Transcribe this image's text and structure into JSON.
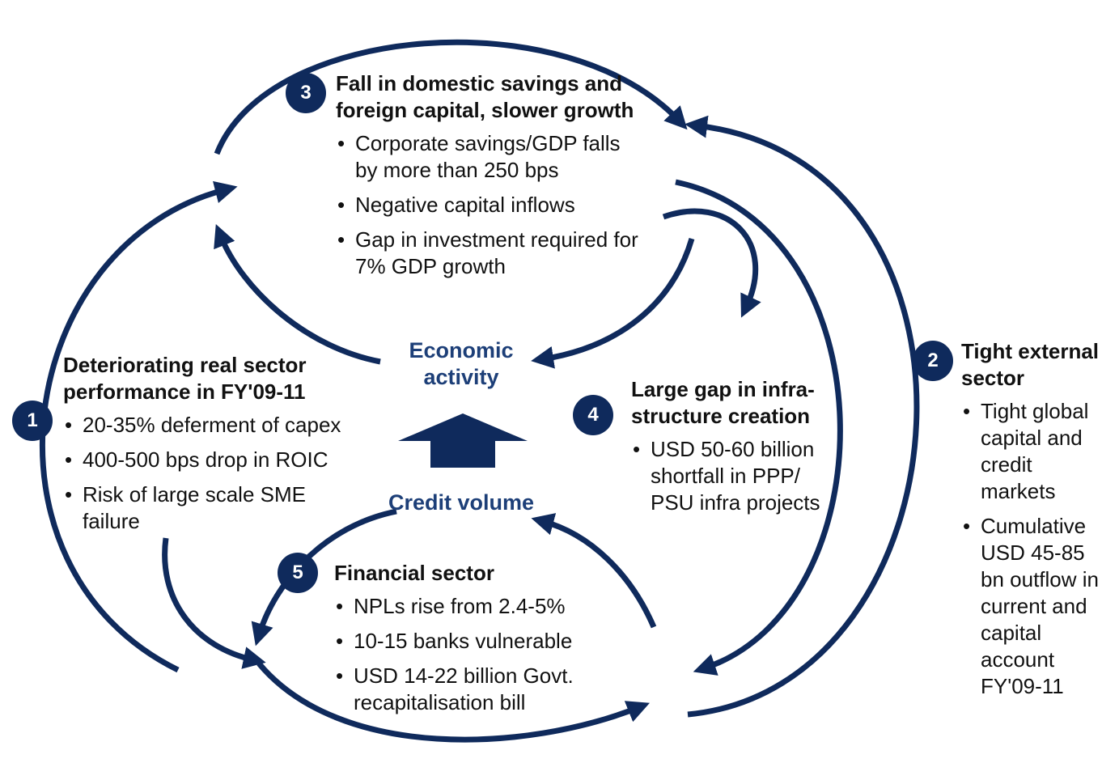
{
  "center": {
    "top": "Economic activity",
    "bottom": "Credit volume"
  },
  "nodes": [
    {
      "number": 1,
      "title": "Deteriorating real sector performance in FY'09-11",
      "bullets": [
        "20-35% deferment of capex",
        "400-500 bps drop in ROIC",
        "Risk of large scale SME failure"
      ]
    },
    {
      "number": 2,
      "title": "Tight external sector",
      "bullets": [
        "Tight global capital and credit markets",
        "Cumulative USD 45-85 bn outflow in current and capital account FY'09-11"
      ]
    },
    {
      "number": 3,
      "title": "Fall in domestic savings and foreign capital, slower growth",
      "bullets": [
        "Corporate savings/GDP falls by more than 250 bps",
        "Negative capital inflows",
        "Gap in investment required for 7% GDP growth"
      ]
    },
    {
      "number": 4,
      "title": "Large gap in infra-structure creation",
      "bullets": [
        "USD 50-60 billion shortfall in PPP/ PSU infra projects"
      ]
    },
    {
      "number": 5,
      "title": "Financial sector",
      "bullets": [
        "NPLs rise from 2.4-5%",
        "10-15 banks vulnerable",
        "USD 14-22 billion Govt. recapitalisation bill"
      ]
    }
  ]
}
